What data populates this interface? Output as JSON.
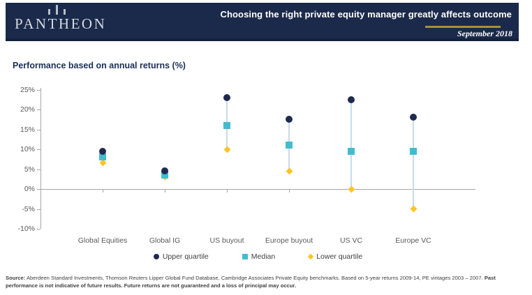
{
  "header": {
    "brand": "PANTHEON",
    "title": "Choosing the right private equity manager greatly affects outcome",
    "date": "September 2018",
    "bg_color": "#1b2a4a",
    "accent_gold": "#a3923d"
  },
  "chart_data": {
    "type": "scatter",
    "title": "Performance based on annual returns (%)",
    "categories": [
      "Global Equities",
      "Global IG",
      "US buyout",
      "Europe buyout",
      "US VC",
      "Europe VC"
    ],
    "series": [
      {
        "name": "Upper quartile",
        "marker": "circle",
        "color": "#1f2b4e",
        "values": [
          9.5,
          4.5,
          23,
          17.5,
          22.5,
          18
        ]
      },
      {
        "name": "Median",
        "marker": "square",
        "color": "#43bccd",
        "values": [
          8,
          3.5,
          16,
          11,
          9.5,
          9.5
        ]
      },
      {
        "name": "Lower quartile",
        "marker": "diamond",
        "color": "#ffc429",
        "values": [
          6.5,
          3,
          10,
          4.5,
          0,
          -5
        ]
      }
    ],
    "ylim": [
      -10,
      25
    ],
    "yticks": [
      "25%",
      "20%",
      "15%",
      "10%",
      "5%",
      "0%",
      "-5%",
      "-10%"
    ],
    "grid": false,
    "legend_position": "bottom",
    "connector_color": "#c8dbe9",
    "axis_color": "#a6a6a6"
  },
  "footer": {
    "source_label": "Source:",
    "source_text": " Aberdeen Standard Investments, Thomson Reuters Lipper Global Fund Database, Cambridge Associates Private Equity benchmarks. Based on 5-year returns 2009-14, PE vintages 2003 – 2007. ",
    "disclaimer": "Past performance is not indicative of future results. Future returns are not guaranteed and a loss of principal may occur."
  }
}
